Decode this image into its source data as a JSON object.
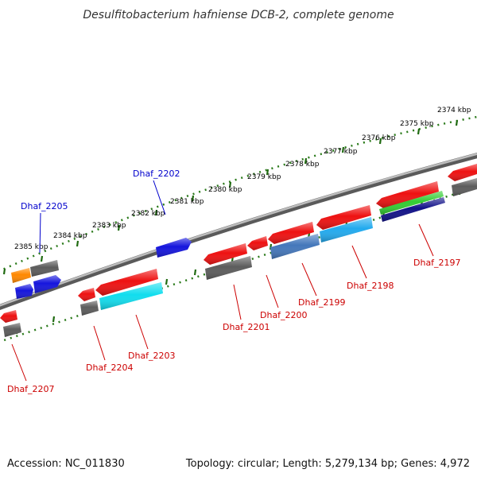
{
  "title": "Desulfitobacterium hafniense DCB-2, complete genome",
  "footer": {
    "accession": "Accession: NC_011830",
    "summary": "Topology: circular; Length: 5,279,134 bp; Genes: 4,972"
  },
  "scale_labels": [
    "2374 kbp",
    "2375 kbp",
    "2376 kbp",
    "2377 kbp",
    "2378 kbp",
    "2379 kbp",
    "2380 kbp",
    "2381 kbp",
    "2382 kbp",
    "2383 kbp",
    "2384 kbp",
    "2385 kbp"
  ],
  "gene_labels": [
    {
      "text": "Dhaf_2197",
      "strand": "minus"
    },
    {
      "text": "Dhaf_2198",
      "strand": "minus"
    },
    {
      "text": "Dhaf_2199",
      "strand": "minus"
    },
    {
      "text": "Dhaf_2200",
      "strand": "minus"
    },
    {
      "text": "Dhaf_2201",
      "strand": "minus"
    },
    {
      "text": "Dhaf_2202",
      "strand": "plus"
    },
    {
      "text": "Dhaf_2203",
      "strand": "minus"
    },
    {
      "text": "Dhaf_2204",
      "strand": "minus"
    },
    {
      "text": "Dhaf_2205",
      "strand": "plus"
    },
    {
      "text": "Dhaf_2207",
      "strand": "minus"
    }
  ],
  "colors": {
    "plus_label": "#0000cc",
    "minus_label": "#cc0000",
    "backbone": "#888888",
    "tick_dots": "#2a7a1a",
    "gene_red": "#ee1111",
    "gene_gray": "#666666",
    "gene_blue": "#1515dd",
    "gene_cyan": "#11ddee",
    "gene_steel": "#4477bb",
    "gene_sky": "#22aaee",
    "gene_orange": "#ff8800",
    "gene_green": "#33cc33",
    "gene_navy": "#111188"
  }
}
